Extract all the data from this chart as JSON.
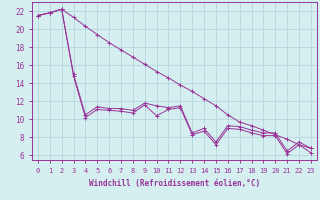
{
  "background_color": "#d5eef0",
  "line_color": "#993399",
  "grid_color": "#aad4da",
  "xlabel": "Windchill (Refroidissement éolien,°C)",
  "xlabel_fontsize": 5.5,
  "tick_fontsize": 5.0,
  "ytick_fontsize": 5.5,
  "xlim": [
    -0.5,
    23.5
  ],
  "ylim": [
    5.5,
    23.0
  ],
  "yticks": [
    6,
    8,
    10,
    12,
    14,
    16,
    18,
    20,
    22
  ],
  "xticks": [
    0,
    1,
    2,
    3,
    4,
    5,
    6,
    7,
    8,
    9,
    10,
    11,
    12,
    13,
    14,
    15,
    16,
    17,
    18,
    19,
    20,
    21,
    22,
    23
  ],
  "x": [
    0,
    1,
    2,
    3,
    4,
    5,
    6,
    7,
    8,
    9,
    10,
    11,
    12,
    13,
    14,
    15,
    16,
    17,
    18,
    19,
    20,
    21,
    22,
    23
  ],
  "line_top": [
    21.5,
    21.8,
    22.2,
    21.3,
    20.3,
    19.4,
    18.5,
    17.7,
    16.9,
    16.1,
    15.3,
    14.6,
    13.8,
    13.1,
    12.3,
    11.5,
    10.5,
    9.7,
    9.3,
    8.8,
    8.3,
    7.8,
    7.2,
    6.8
  ],
  "line_mid": [
    21.5,
    21.8,
    22.2,
    15.0,
    10.5,
    11.4,
    11.2,
    11.2,
    11.0,
    11.8,
    11.5,
    11.3,
    11.5,
    8.5,
    9.0,
    7.5,
    9.3,
    9.2,
    8.8,
    8.5,
    8.5,
    6.5,
    7.5,
    6.8
  ],
  "line_bot": [
    21.5,
    21.8,
    22.2,
    14.8,
    10.2,
    11.1,
    11.0,
    10.9,
    10.7,
    11.6,
    10.4,
    11.1,
    11.3,
    8.3,
    8.7,
    7.2,
    9.0,
    8.9,
    8.5,
    8.2,
    8.2,
    6.2,
    7.2,
    6.3
  ]
}
